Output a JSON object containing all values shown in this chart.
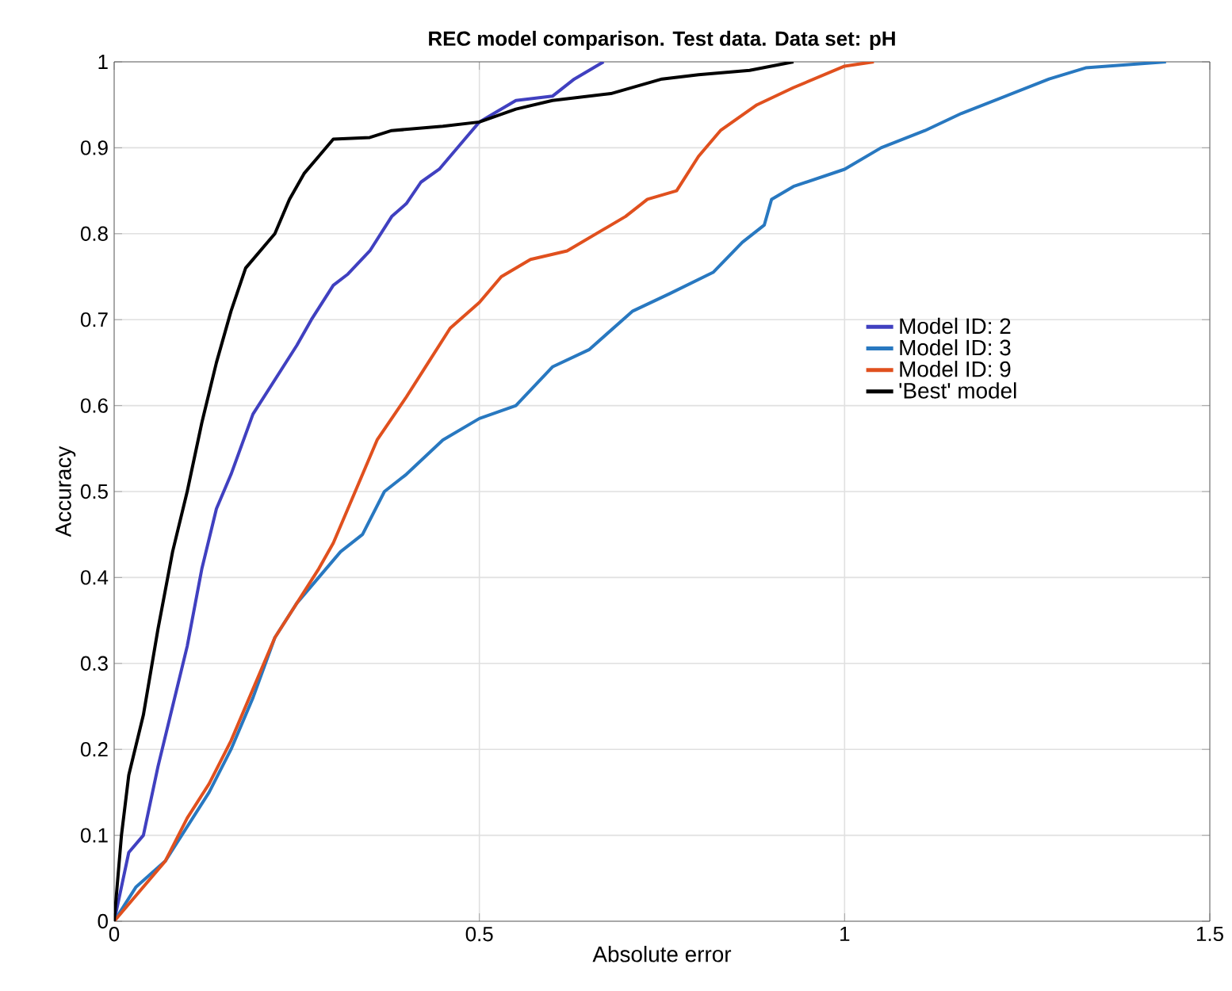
{
  "chart_data": {
    "type": "line",
    "title": "REC model comparison. Test data. Data set: pH",
    "xlabel": "Absolute error",
    "ylabel": "Accuracy",
    "xlim": [
      0,
      1.5
    ],
    "ylim": [
      0,
      1
    ],
    "xticks": [
      0,
      0.5,
      1,
      1.5
    ],
    "yticks": [
      0,
      0.1,
      0.2,
      0.3,
      0.4,
      0.5,
      0.6,
      0.7,
      0.8,
      0.9,
      1
    ],
    "grid": true,
    "legend": "right",
    "marker": "none",
    "line_style": "solid",
    "series": [
      {
        "name": "Model ID: 2",
        "color": "#4040c0",
        "x": [
          0,
          0.02,
          0.04,
          0.06,
          0.08,
          0.1,
          0.12,
          0.14,
          0.16,
          0.19,
          0.22,
          0.25,
          0.27,
          0.3,
          0.32,
          0.35,
          0.38,
          0.4,
          0.42,
          0.445,
          0.48,
          0.5,
          0.52,
          0.55,
          0.6,
          0.63,
          0.67
        ],
        "values": [
          0,
          0.08,
          0.1,
          0.18,
          0.25,
          0.32,
          0.41,
          0.48,
          0.52,
          0.59,
          0.63,
          0.67,
          0.7,
          0.74,
          0.753,
          0.78,
          0.82,
          0.835,
          0.86,
          0.875,
          0.91,
          0.93,
          0.94,
          0.955,
          0.96,
          0.98,
          1
        ]
      },
      {
        "name": "Model ID: 3",
        "color": "#2878c0",
        "x": [
          0,
          0.03,
          0.07,
          0.1,
          0.13,
          0.16,
          0.19,
          0.22,
          0.25,
          0.28,
          0.31,
          0.34,
          0.37,
          0.4,
          0.45,
          0.5,
          0.55,
          0.6,
          0.65,
          0.71,
          0.76,
          0.82,
          0.86,
          0.89,
          0.9,
          0.93,
          1.0,
          1.05,
          1.11,
          1.16,
          1.22,
          1.28,
          1.33,
          1.44
        ],
        "values": [
          0,
          0.04,
          0.07,
          0.11,
          0.15,
          0.2,
          0.26,
          0.33,
          0.37,
          0.4,
          0.43,
          0.45,
          0.5,
          0.52,
          0.56,
          0.585,
          0.6,
          0.645,
          0.665,
          0.71,
          0.73,
          0.755,
          0.79,
          0.81,
          0.84,
          0.855,
          0.875,
          0.9,
          0.92,
          0.94,
          0.96,
          0.98,
          0.993,
          1
        ]
      },
      {
        "name": "Model ID: 9",
        "color": "#e0501e",
        "x": [
          0,
          0.03,
          0.07,
          0.1,
          0.13,
          0.16,
          0.19,
          0.22,
          0.25,
          0.28,
          0.3,
          0.33,
          0.36,
          0.4,
          0.43,
          0.46,
          0.5,
          0.53,
          0.57,
          0.62,
          0.66,
          0.7,
          0.73,
          0.77,
          0.8,
          0.83,
          0.88,
          0.93,
          1.0,
          1.04
        ],
        "values": [
          0,
          0.03,
          0.07,
          0.12,
          0.16,
          0.21,
          0.27,
          0.33,
          0.37,
          0.41,
          0.44,
          0.5,
          0.56,
          0.61,
          0.65,
          0.69,
          0.72,
          0.75,
          0.77,
          0.78,
          0.8,
          0.82,
          0.84,
          0.85,
          0.89,
          0.92,
          0.95,
          0.97,
          0.995,
          1
        ]
      },
      {
        "name": "'Best' model",
        "color": "#000000",
        "x": [
          0,
          0.01,
          0.02,
          0.04,
          0.06,
          0.08,
          0.1,
          0.12,
          0.14,
          0.16,
          0.18,
          0.2,
          0.22,
          0.24,
          0.26,
          0.28,
          0.3,
          0.35,
          0.38,
          0.45,
          0.5,
          0.55,
          0.6,
          0.68,
          0.75,
          0.8,
          0.87,
          0.93
        ],
        "values": [
          0,
          0.1,
          0.17,
          0.24,
          0.34,
          0.43,
          0.5,
          0.58,
          0.65,
          0.71,
          0.76,
          0.78,
          0.8,
          0.84,
          0.87,
          0.89,
          0.91,
          0.912,
          0.92,
          0.925,
          0.93,
          0.945,
          0.955,
          0.963,
          0.98,
          0.985,
          0.99,
          1
        ]
      }
    ]
  }
}
